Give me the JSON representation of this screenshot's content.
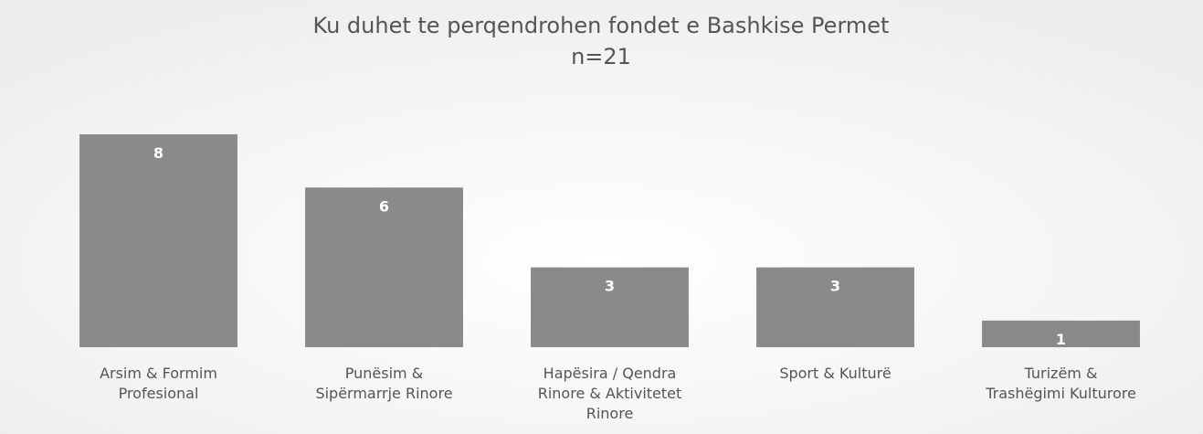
{
  "chart_data": {
    "type": "bar",
    "title": "Ku duhet te perqendrohen fondet e Bashkise Permet",
    "subtitle": "n=21",
    "categories": [
      "Arsim & Formim Profesional",
      "Punësim & Sipërmarrje Rinore",
      "Hapësira / Qendra Rinore & Aktivitetet Rinore",
      "Sport & Kulturë",
      "Turizëm & Trashëgimi Kulturore"
    ],
    "values": [
      8,
      6,
      3,
      3,
      1
    ],
    "color": "#8a8a8a",
    "grid": false
  }
}
